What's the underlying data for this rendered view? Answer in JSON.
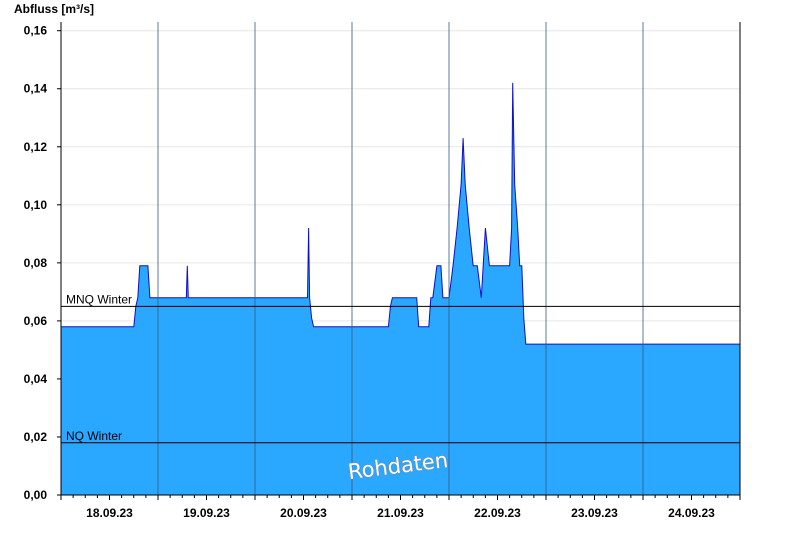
{
  "chart_data": {
    "type": "area",
    "title": "",
    "ylabel": "Abfluss [m³/s]",
    "xlabel": "",
    "ylim": [
      0,
      0.163
    ],
    "xlim": [
      "2023-09-17T12:00",
      "2023-09-24T12:00"
    ],
    "grid": true,
    "y_ticks": [
      {
        "value": 0.0,
        "label": "0,00"
      },
      {
        "value": 0.02,
        "label": "0,02"
      },
      {
        "value": 0.04,
        "label": "0,04"
      },
      {
        "value": 0.06,
        "label": "0,06"
      },
      {
        "value": 0.08,
        "label": "0,08"
      },
      {
        "value": 0.1,
        "label": "0,10"
      },
      {
        "value": 0.12,
        "label": "0,12"
      },
      {
        "value": 0.14,
        "label": "0,14"
      },
      {
        "value": 0.16,
        "label": "0,16"
      }
    ],
    "x_ticks": [
      {
        "x": "2023-09-18T00:00",
        "label": "18.09.23"
      },
      {
        "x": "2023-09-19T00:00",
        "label": "19.09.23"
      },
      {
        "x": "2023-09-20T00:00",
        "label": "20.09.23"
      },
      {
        "x": "2023-09-21T00:00",
        "label": "21.09.23"
      },
      {
        "x": "2023-09-22T00:00",
        "label": "22.09.23"
      },
      {
        "x": "2023-09-23T00:00",
        "label": "23.09.23"
      },
      {
        "x": "2023-09-24T00:00",
        "label": "24.09.23"
      }
    ],
    "x_gridlines": [
      "2023-09-18T12:00",
      "2023-09-19T12:00",
      "2023-09-20T12:00",
      "2023-09-21T12:00",
      "2023-09-22T12:00",
      "2023-09-23T12:00"
    ],
    "reference_lines": [
      {
        "label": "MNQ Winter",
        "value": 0.065
      },
      {
        "label": "NQ Winter",
        "value": 0.018
      }
    ],
    "watermark": "Rohdaten",
    "fill_color": "#2aa7ff",
    "line_color": "#1010c0",
    "series": [
      {
        "points": [
          [
            "2023-09-17T12:00",
            0.058
          ],
          [
            "2023-09-18T06:00",
            0.058
          ],
          [
            "2023-09-18T06:30",
            0.065
          ],
          [
            "2023-09-18T07:00",
            0.068
          ],
          [
            "2023-09-18T07:30",
            0.079
          ],
          [
            "2023-09-18T09:30",
            0.079
          ],
          [
            "2023-09-18T10:00",
            0.068
          ],
          [
            "2023-09-18T19:00",
            0.068
          ],
          [
            "2023-09-18T19:15",
            0.079
          ],
          [
            "2023-09-18T19:30",
            0.068
          ],
          [
            "2023-09-20T01:00",
            0.068
          ],
          [
            "2023-09-20T01:15",
            0.092
          ],
          [
            "2023-09-20T01:30",
            0.068
          ],
          [
            "2023-09-20T02:00",
            0.061
          ],
          [
            "2023-09-20T02:30",
            0.058
          ],
          [
            "2023-09-20T21:00",
            0.058
          ],
          [
            "2023-09-20T21:30",
            0.065
          ],
          [
            "2023-09-20T22:00",
            0.068
          ],
          [
            "2023-09-21T04:00",
            0.068
          ],
          [
            "2023-09-21T04:30",
            0.058
          ],
          [
            "2023-09-21T07:00",
            0.058
          ],
          [
            "2023-09-21T07:30",
            0.068
          ],
          [
            "2023-09-21T08:00",
            0.068
          ],
          [
            "2023-09-21T09:00",
            0.079
          ],
          [
            "2023-09-21T10:00",
            0.079
          ],
          [
            "2023-09-21T10:30",
            0.068
          ],
          [
            "2023-09-21T12:00",
            0.068
          ],
          [
            "2023-09-21T13:00",
            0.079
          ],
          [
            "2023-09-21T14:00",
            0.092
          ],
          [
            "2023-09-21T15:00",
            0.107
          ],
          [
            "2023-09-21T15:30",
            0.123
          ],
          [
            "2023-09-21T16:00",
            0.107
          ],
          [
            "2023-09-21T17:00",
            0.092
          ],
          [
            "2023-09-21T18:00",
            0.079
          ],
          [
            "2023-09-21T19:00",
            0.079
          ],
          [
            "2023-09-21T20:00",
            0.068
          ],
          [
            "2023-09-21T21:00",
            0.092
          ],
          [
            "2023-09-21T22:00",
            0.079
          ],
          [
            "2023-09-22T03:00",
            0.079
          ],
          [
            "2023-09-22T03:30",
            0.092
          ],
          [
            "2023-09-22T03:45",
            0.142
          ],
          [
            "2023-09-22T04:15",
            0.107
          ],
          [
            "2023-09-22T05:00",
            0.092
          ],
          [
            "2023-09-22T05:30",
            0.079
          ],
          [
            "2023-09-22T06:00",
            0.079
          ],
          [
            "2023-09-22T06:30",
            0.061
          ],
          [
            "2023-09-22T07:00",
            0.052
          ],
          [
            "2023-09-24T12:00",
            0.052
          ]
        ]
      }
    ]
  }
}
